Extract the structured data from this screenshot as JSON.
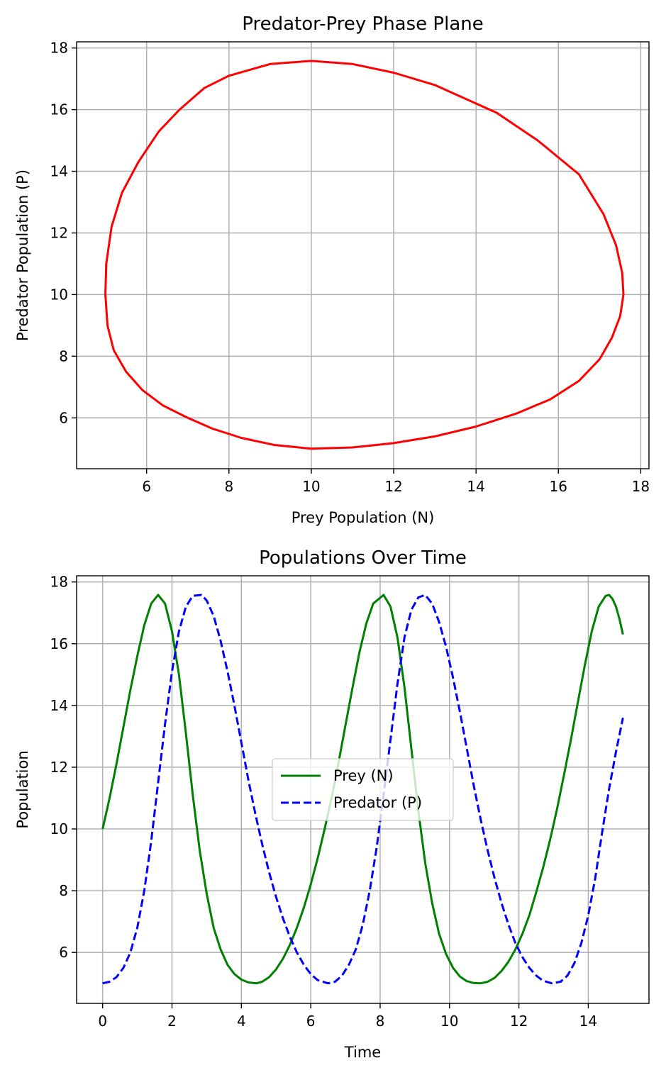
{
  "chart_data": [
    {
      "type": "line",
      "title": "Predator-Prey Phase Plane",
      "xlabel": "Prey Population (N)",
      "ylabel": "Predator Population (P)",
      "xlim": [
        4.3,
        18.2
      ],
      "ylim": [
        4.35,
        18.2
      ],
      "xticks": [
        6,
        8,
        10,
        12,
        14,
        16,
        18
      ],
      "yticks": [
        6,
        8,
        10,
        12,
        14,
        16,
        18
      ],
      "grid": true,
      "series": [
        {
          "color": "#ff0000",
          "style": "solid",
          "x": [
            10.0,
            11.0,
            12.0,
            13.0,
            14.0,
            15.0,
            15.8,
            16.5,
            17.0,
            17.3,
            17.5,
            17.58,
            17.55,
            17.4,
            17.1,
            16.5,
            15.5,
            14.5,
            13.0,
            12.0,
            11.0,
            10.0,
            9.0,
            8.0,
            7.4,
            6.8,
            6.3,
            5.8,
            5.4,
            5.15,
            5.02,
            5.0,
            5.05,
            5.2,
            5.5,
            5.9,
            6.4,
            7.0,
            7.6,
            8.3,
            9.1,
            10.0
          ],
          "y": [
            5.0,
            5.04,
            5.18,
            5.4,
            5.72,
            6.15,
            6.6,
            7.2,
            7.9,
            8.6,
            9.3,
            10.0,
            10.7,
            11.6,
            12.6,
            13.9,
            15.0,
            15.9,
            16.8,
            17.2,
            17.48,
            17.58,
            17.48,
            17.1,
            16.7,
            16.0,
            15.3,
            14.3,
            13.3,
            12.2,
            11.0,
            10.0,
            9.0,
            8.2,
            7.5,
            6.9,
            6.4,
            6.0,
            5.65,
            5.35,
            5.12,
            5.0
          ]
        }
      ]
    },
    {
      "type": "line",
      "title": "Populations Over Time",
      "xlabel": "Time",
      "ylabel": "Population",
      "xlim": [
        -0.75,
        15.75
      ],
      "ylim": [
        4.35,
        18.2
      ],
      "xticks": [
        0,
        2,
        4,
        6,
        8,
        10,
        12,
        14
      ],
      "yticks": [
        6,
        8,
        10,
        12,
        14,
        16,
        18
      ],
      "grid": true,
      "legend": "center",
      "series": [
        {
          "name": "Prey (N)",
          "color": "#008000",
          "style": "solid",
          "x": [
            0.0,
            0.2,
            0.4,
            0.6,
            0.8,
            1.0,
            1.2,
            1.4,
            1.6,
            1.8,
            2.0,
            2.2,
            2.4,
            2.6,
            2.8,
            3.0,
            3.2,
            3.4,
            3.6,
            3.8,
            4.0,
            4.2,
            4.43,
            4.6,
            4.8,
            5.0,
            5.2,
            5.4,
            5.6,
            5.8,
            6.0,
            6.2,
            6.4,
            6.6,
            6.8,
            7.0,
            7.2,
            7.4,
            7.6,
            7.8,
            8.1,
            8.3,
            8.5,
            8.7,
            8.9,
            9.1,
            9.3,
            9.5,
            9.7,
            9.9,
            10.1,
            10.3,
            10.5,
            10.7,
            10.9,
            11.1,
            11.3,
            11.5,
            11.7,
            11.9,
            12.1,
            12.3,
            12.5,
            12.7,
            12.9,
            13.1,
            13.3,
            13.5,
            13.7,
            13.9,
            14.1,
            14.3,
            14.5,
            14.6,
            14.7,
            14.8,
            14.9,
            15.0
          ],
          "y": [
            10.0,
            11.0,
            12.1,
            13.3,
            14.5,
            15.6,
            16.6,
            17.3,
            17.58,
            17.3,
            16.4,
            15.0,
            13.1,
            11.1,
            9.3,
            7.9,
            6.8,
            6.1,
            5.6,
            5.3,
            5.12,
            5.03,
            5.0,
            5.05,
            5.2,
            5.45,
            5.8,
            6.25,
            6.8,
            7.45,
            8.2,
            9.05,
            10.0,
            11.0,
            12.15,
            13.35,
            14.55,
            15.7,
            16.65,
            17.3,
            17.58,
            17.2,
            16.2,
            14.6,
            12.6,
            10.6,
            8.9,
            7.6,
            6.6,
            5.95,
            5.5,
            5.22,
            5.07,
            5.01,
            5.0,
            5.05,
            5.18,
            5.4,
            5.7,
            6.1,
            6.6,
            7.2,
            7.95,
            8.75,
            9.65,
            10.65,
            11.75,
            12.9,
            14.1,
            15.3,
            16.4,
            17.2,
            17.55,
            17.58,
            17.45,
            17.2,
            16.8,
            16.3
          ]
        },
        {
          "name": "Predator (P)",
          "color": "#0000ff",
          "style": "dashed",
          "x": [
            0.0,
            0.2,
            0.4,
            0.6,
            0.8,
            1.0,
            1.2,
            1.4,
            1.6,
            1.8,
            2.0,
            2.2,
            2.4,
            2.6,
            2.85,
            3.0,
            3.2,
            3.4,
            3.6,
            3.8,
            4.0,
            4.2,
            4.4,
            4.6,
            4.8,
            5.0,
            5.2,
            5.4,
            5.6,
            5.8,
            6.0,
            6.2,
            6.5,
            6.7,
            6.9,
            7.1,
            7.3,
            7.5,
            7.7,
            7.9,
            8.1,
            8.3,
            8.5,
            8.7,
            8.9,
            9.1,
            9.3,
            9.5,
            9.7,
            9.9,
            10.1,
            10.3,
            10.5,
            10.7,
            10.9,
            11.1,
            11.3,
            11.5,
            11.7,
            11.9,
            12.1,
            12.3,
            12.5,
            12.7,
            12.95,
            13.2,
            13.4,
            13.6,
            13.8,
            14.0,
            14.2,
            14.4,
            14.6,
            14.8,
            15.0
          ],
          "y": [
            5.0,
            5.05,
            5.2,
            5.5,
            6.0,
            6.8,
            8.0,
            9.6,
            11.5,
            13.4,
            15.1,
            16.4,
            17.2,
            17.55,
            17.58,
            17.4,
            16.9,
            16.1,
            15.1,
            14.0,
            12.8,
            11.6,
            10.5,
            9.5,
            8.6,
            7.8,
            7.1,
            6.5,
            6.0,
            5.6,
            5.3,
            5.1,
            5.0,
            5.05,
            5.25,
            5.6,
            6.1,
            6.9,
            8.0,
            9.4,
            11.1,
            12.9,
            14.7,
            16.2,
            17.1,
            17.5,
            17.58,
            17.3,
            16.7,
            15.9,
            14.9,
            13.8,
            12.6,
            11.4,
            10.3,
            9.3,
            8.4,
            7.6,
            6.9,
            6.3,
            5.85,
            5.5,
            5.25,
            5.08,
            5.0,
            5.05,
            5.25,
            5.65,
            6.3,
            7.2,
            8.4,
            9.9,
            11.3,
            12.5,
            13.6
          ]
        }
      ]
    }
  ]
}
